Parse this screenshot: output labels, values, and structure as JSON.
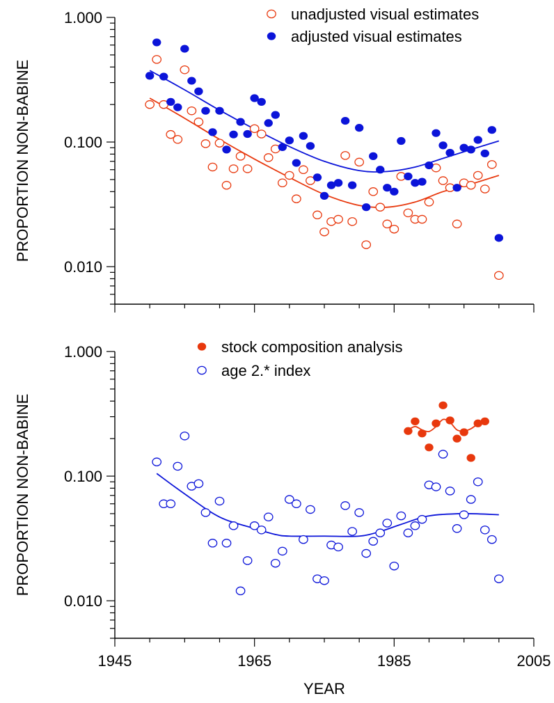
{
  "colors": {
    "red": "#e8380d",
    "blue": "#0b14d9",
    "axis": "#000000"
  },
  "chart_data": [
    {
      "type": "scatter",
      "ylabel": "PROPORTION NON-BABINE",
      "xlabel": "",
      "xlim": [
        1945,
        2005
      ],
      "ylim": [
        0.005,
        1.0
      ],
      "yscale": "log",
      "yticks": [
        "1.000",
        "0.100",
        "0.010"
      ],
      "xticks": [],
      "legend_placement": "top-right",
      "legend": [
        "unadjusted visual estimates",
        "adjusted visual estimates"
      ],
      "series": [
        {
          "name": "unadjusted visual estimates",
          "marker": "open-circle",
          "color": "red",
          "points": [
            [
              1950,
              0.2
            ],
            [
              1951,
              0.46
            ],
            [
              1952,
              0.2
            ],
            [
              1953,
              0.115
            ],
            [
              1954,
              0.105
            ],
            [
              1955,
              0.38
            ],
            [
              1956,
              0.178
            ],
            [
              1957,
              0.145
            ],
            [
              1958,
              0.097
            ],
            [
              1959,
              0.063
            ],
            [
              1960,
              0.098
            ],
            [
              1961,
              0.045
            ],
            [
              1962,
              0.061
            ],
            [
              1963,
              0.077
            ],
            [
              1964,
              0.061
            ],
            [
              1965,
              0.128
            ],
            [
              1966,
              0.116
            ],
            [
              1967,
              0.075
            ],
            [
              1968,
              0.088
            ],
            [
              1969,
              0.047
            ],
            [
              1970,
              0.054
            ],
            [
              1971,
              0.035
            ],
            [
              1972,
              0.06
            ],
            [
              1973,
              0.049
            ],
            [
              1974,
              0.026
            ],
            [
              1975,
              0.019
            ],
            [
              1976,
              0.023
            ],
            [
              1977,
              0.024
            ],
            [
              1978,
              0.078
            ],
            [
              1979,
              0.023
            ],
            [
              1980,
              0.069
            ],
            [
              1981,
              0.015
            ],
            [
              1982,
              0.04
            ],
            [
              1983,
              0.03
            ],
            [
              1984,
              0.022
            ],
            [
              1985,
              0.02
            ],
            [
              1986,
              0.053
            ],
            [
              1987,
              0.027
            ],
            [
              1988,
              0.024
            ],
            [
              1989,
              0.024
            ],
            [
              1990,
              0.033
            ],
            [
              1991,
              0.062
            ],
            [
              1992,
              0.049
            ],
            [
              1993,
              0.043
            ],
            [
              1994,
              0.022
            ],
            [
              1995,
              0.047
            ],
            [
              1996,
              0.045
            ],
            [
              1997,
              0.054
            ],
            [
              1998,
              0.042
            ],
            [
              1999,
              0.066
            ],
            [
              2000,
              0.0085
            ]
          ]
        },
        {
          "name": "adjusted visual estimates",
          "marker": "filled-circle",
          "color": "blue",
          "points": [
            [
              1950,
              0.34
            ],
            [
              1951,
              0.63
            ],
            [
              1952,
              0.335
            ],
            [
              1953,
              0.21
            ],
            [
              1954,
              0.19
            ],
            [
              1955,
              0.56
            ],
            [
              1956,
              0.31
            ],
            [
              1957,
              0.255
            ],
            [
              1958,
              0.178
            ],
            [
              1959,
              0.12
            ],
            [
              1960,
              0.178
            ],
            [
              1961,
              0.087
            ],
            [
              1962,
              0.115
            ],
            [
              1963,
              0.145
            ],
            [
              1964,
              0.116
            ],
            [
              1965,
              0.225
            ],
            [
              1966,
              0.21
            ],
            [
              1967,
              0.142
            ],
            [
              1968,
              0.165
            ],
            [
              1969,
              0.091
            ],
            [
              1970,
              0.103
            ],
            [
              1971,
              0.068
            ],
            [
              1972,
              0.112
            ],
            [
              1973,
              0.093
            ],
            [
              1974,
              0.052
            ],
            [
              1975,
              0.037
            ],
            [
              1976,
              0.045
            ],
            [
              1977,
              0.047
            ],
            [
              1978,
              0.148
            ],
            [
              1979,
              0.045
            ],
            [
              1980,
              0.13
            ],
            [
              1981,
              0.03
            ],
            [
              1982,
              0.077
            ],
            [
              1983,
              0.06
            ],
            [
              1984,
              0.043
            ],
            [
              1985,
              0.04
            ],
            [
              1986,
              0.102
            ],
            [
              1987,
              0.053
            ],
            [
              1988,
              0.047
            ],
            [
              1989,
              0.048
            ],
            [
              1990,
              0.065
            ],
            [
              1991,
              0.118
            ],
            [
              1992,
              0.094
            ],
            [
              1993,
              0.082
            ],
            [
              1994,
              0.043
            ],
            [
              1995,
              0.09
            ],
            [
              1996,
              0.087
            ],
            [
              1997,
              0.104
            ],
            [
              1998,
              0.081
            ],
            [
              1999,
              0.125
            ],
            [
              2000,
              0.017
            ]
          ]
        }
      ],
      "trend_lines": [
        {
          "color": "red",
          "points": [
            [
              1950,
              0.225
            ],
            [
              1955,
              0.155
            ],
            [
              1960,
              0.105
            ],
            [
              1965,
              0.073
            ],
            [
              1970,
              0.052
            ],
            [
              1975,
              0.038
            ],
            [
              1980,
              0.031
            ],
            [
              1984,
              0.03
            ],
            [
              1988,
              0.033
            ],
            [
              1992,
              0.04
            ],
            [
              1996,
              0.046
            ],
            [
              2000,
              0.054
            ]
          ]
        },
        {
          "color": "blue",
          "points": [
            [
              1950,
              0.375
            ],
            [
              1955,
              0.262
            ],
            [
              1960,
              0.18
            ],
            [
              1965,
              0.127
            ],
            [
              1970,
              0.092
            ],
            [
              1975,
              0.07
            ],
            [
              1980,
              0.059
            ],
            [
              1984,
              0.058
            ],
            [
              1988,
              0.063
            ],
            [
              1992,
              0.074
            ],
            [
              1996,
              0.087
            ],
            [
              2000,
              0.102
            ]
          ]
        }
      ]
    },
    {
      "type": "scatter",
      "ylabel": "PROPORTION NON-BABINE",
      "xlabel": "YEAR",
      "xlim": [
        1945,
        2005
      ],
      "ylim": [
        0.005,
        1.0
      ],
      "yscale": "log",
      "yticks": [
        "1.000",
        "0.100",
        "0.010"
      ],
      "xticks": [
        "1945",
        "1965",
        "1985",
        "2005"
      ],
      "legend_placement": "top-center",
      "legend": [
        "stock composition analysis",
        "age 2.* index"
      ],
      "series": [
        {
          "name": "stock composition analysis",
          "marker": "filled-circle",
          "color": "red",
          "points": [
            [
              1987,
              0.23
            ],
            [
              1988,
              0.275
            ],
            [
              1989,
              0.22
            ],
            [
              1990,
              0.17
            ],
            [
              1991,
              0.265
            ],
            [
              1992,
              0.37
            ],
            [
              1993,
              0.28
            ],
            [
              1994,
              0.2
            ],
            [
              1995,
              0.225
            ],
            [
              1996,
              0.14
            ],
            [
              1997,
              0.265
            ],
            [
              1998,
              0.275
            ]
          ]
        },
        {
          "name": "age 2.* index",
          "marker": "open-circle",
          "color": "blue",
          "points": [
            [
              1951,
              0.13
            ],
            [
              1952,
              0.06
            ],
            [
              1953,
              0.06
            ],
            [
              1954,
              0.12
            ],
            [
              1955,
              0.21
            ],
            [
              1956,
              0.083
            ],
            [
              1957,
              0.087
            ],
            [
              1958,
              0.051
            ],
            [
              1959,
              0.029
            ],
            [
              1960,
              0.063
            ],
            [
              1961,
              0.029
            ],
            [
              1962,
              0.04
            ],
            [
              1963,
              0.012
            ],
            [
              1964,
              0.021
            ],
            [
              1965,
              0.04
            ],
            [
              1966,
              0.037
            ],
            [
              1967,
              0.047
            ],
            [
              1968,
              0.02
            ],
            [
              1969,
              0.025
            ],
            [
              1970,
              0.065
            ],
            [
              1971,
              0.06
            ],
            [
              1972,
              0.031
            ],
            [
              1973,
              0.054
            ],
            [
              1974,
              0.015
            ],
            [
              1975,
              0.0145
            ],
            [
              1976,
              0.028
            ],
            [
              1977,
              0.027
            ],
            [
              1978,
              0.058
            ],
            [
              1979,
              0.036
            ],
            [
              1980,
              0.051
            ],
            [
              1981,
              0.024
            ],
            [
              1982,
              0.03
            ],
            [
              1983,
              0.035
            ],
            [
              1984,
              0.042
            ],
            [
              1985,
              0.019
            ],
            [
              1986,
              0.048
            ],
            [
              1987,
              0.035
            ],
            [
              1988,
              0.04
            ],
            [
              1989,
              0.045
            ],
            [
              1990,
              0.085
            ],
            [
              1991,
              0.082
            ],
            [
              1992,
              0.15
            ],
            [
              1993,
              0.076
            ],
            [
              1994,
              0.038
            ],
            [
              1995,
              0.049
            ],
            [
              1996,
              0.065
            ],
            [
              1997,
              0.09
            ],
            [
              1998,
              0.037
            ],
            [
              1999,
              0.031
            ],
            [
              2000,
              0.015
            ]
          ]
        }
      ],
      "trend_lines": [
        {
          "color": "blue",
          "points": [
            [
              1951,
              0.105
            ],
            [
              1955,
              0.072
            ],
            [
              1960,
              0.047
            ],
            [
              1965,
              0.038
            ],
            [
              1968,
              0.034
            ],
            [
              1970,
              0.033
            ],
            [
              1975,
              0.033
            ],
            [
              1980,
              0.033
            ],
            [
              1983,
              0.036
            ],
            [
              1986,
              0.041
            ],
            [
              1990,
              0.048
            ],
            [
              1995,
              0.05
            ],
            [
              2000,
              0.049
            ]
          ]
        },
        {
          "color": "red",
          "points": [
            [
              1987,
              0.235
            ],
            [
              1988,
              0.25
            ],
            [
              1989,
              0.235
            ],
            [
              1990,
              0.228
            ],
            [
              1991,
              0.25
            ],
            [
              1992,
              0.285
            ],
            [
              1993,
              0.27
            ],
            [
              1994,
              0.235
            ],
            [
              1995,
              0.23
            ],
            [
              1996,
              0.24
            ],
            [
              1997,
              0.262
            ],
            [
              1998,
              0.272
            ]
          ]
        }
      ]
    }
  ]
}
